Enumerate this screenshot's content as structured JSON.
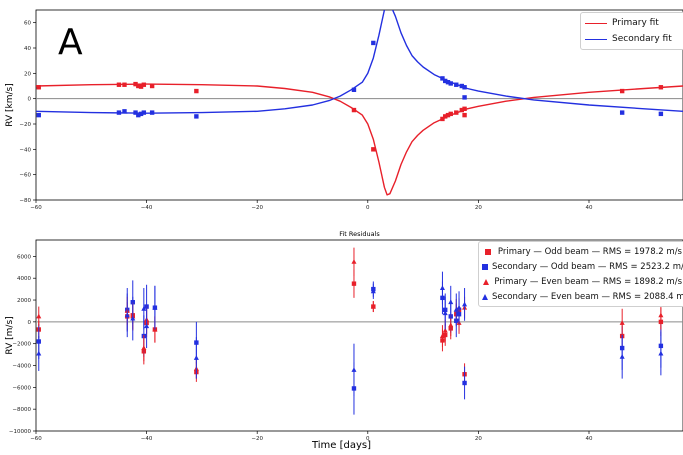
{
  "panel_letter": "A",
  "chart_data": [
    {
      "type": "line",
      "ylabel": "RV [km/s]",
      "xlim": [
        -60,
        57
      ],
      "ylim": [
        -80,
        70
      ],
      "xticks": [
        -60,
        -40,
        -20,
        0,
        20,
        40
      ],
      "yticks": [
        -80,
        -60,
        -40,
        -20,
        0,
        20,
        40,
        60
      ],
      "zero_line": 0,
      "legend": {
        "location": "top-right",
        "entries": [
          "Primary fit",
          "Secondary fit"
        ]
      },
      "colors": {
        "primary": "#e8202a",
        "secondary": "#2330e0",
        "zero": "#888888"
      },
      "fit_curves": [
        {
          "name": "Primary fit",
          "color": "#e8202a",
          "x": [
            -60,
            -50,
            -40,
            -30,
            -20,
            -15,
            -10,
            -7,
            -5,
            -3,
            -1,
            0,
            1,
            2,
            3,
            3.5,
            4,
            5,
            6,
            7,
            8,
            9,
            10,
            12,
            15,
            18,
            20,
            25,
            30,
            40,
            50,
            57
          ],
          "y": [
            10,
            11,
            11.5,
            11,
            10,
            8,
            5,
            1.5,
            -2,
            -7,
            -13,
            -20,
            -32,
            -50,
            -70,
            -76,
            -75,
            -65,
            -52,
            -42,
            -34,
            -29,
            -25,
            -19,
            -13,
            -8,
            -6,
            -2,
            1,
            5,
            8,
            10
          ]
        },
        {
          "name": "Secondary fit",
          "color": "#2330e0",
          "x": [
            -60,
            -50,
            -40,
            -30,
            -20,
            -15,
            -10,
            -7,
            -5,
            -3,
            -1,
            0,
            1,
            2,
            3,
            3.5,
            4,
            5,
            6,
            7,
            8,
            9,
            10,
            12,
            15,
            18,
            20,
            25,
            30,
            40,
            50,
            57
          ],
          "y": [
            -10,
            -11,
            -11.5,
            -11,
            -10,
            -8,
            -5,
            -1.5,
            2,
            7,
            13,
            20,
            32,
            50,
            70,
            76,
            75,
            65,
            52,
            42,
            34,
            29,
            25,
            19,
            13,
            8,
            6,
            2,
            -1,
            -5,
            -8,
            -10
          ]
        }
      ],
      "series": [
        {
          "name": "Primary data",
          "color": "#e8202a",
          "marker": "square",
          "points": [
            [
              -59.5,
              9
            ],
            [
              -45,
              11
            ],
            [
              -44,
              11
            ],
            [
              -42,
              11.5
            ],
            [
              -41.5,
              10
            ],
            [
              -41,
              9.5
            ],
            [
              -40.5,
              11
            ],
            [
              -39,
              10
            ],
            [
              -31,
              6
            ],
            [
              -2.5,
              -9
            ],
            [
              1,
              -40
            ],
            [
              13.5,
              -16
            ],
            [
              14,
              -14
            ],
            [
              14.5,
              -13
            ],
            [
              15,
              -12
            ],
            [
              16,
              -11
            ],
            [
              17,
              -9
            ],
            [
              17.5,
              -8
            ],
            [
              17.5,
              -13
            ],
            [
              46,
              6
            ],
            [
              53,
              9
            ]
          ]
        },
        {
          "name": "Secondary data",
          "color": "#2330e0",
          "marker": "square",
          "points": [
            [
              -59.5,
              -13
            ],
            [
              -45,
              -11
            ],
            [
              -44,
              -10
            ],
            [
              -42,
              -11
            ],
            [
              -41.5,
              -13
            ],
            [
              -41,
              -12
            ],
            [
              -40.5,
              -11
            ],
            [
              -39,
              -11
            ],
            [
              -31,
              -14
            ],
            [
              -2.5,
              7
            ],
            [
              1,
              44
            ],
            [
              13.5,
              16
            ],
            [
              14,
              14
            ],
            [
              14.5,
              13
            ],
            [
              15,
              12
            ],
            [
              16,
              11
            ],
            [
              17,
              10
            ],
            [
              17.5,
              9
            ],
            [
              17.5,
              1
            ],
            [
              46,
              -11
            ],
            [
              53,
              -12
            ]
          ]
        }
      ]
    },
    {
      "type": "scatter",
      "title": "Fit Residuals",
      "xlabel": "Time [days]",
      "ylabel": "RV [m/s]",
      "xlim": [
        -60,
        57
      ],
      "ylim": [
        -10000,
        7500
      ],
      "xticks": [
        -60,
        -40,
        -20,
        0,
        20,
        40
      ],
      "yticks": [
        -10000,
        -8000,
        -6000,
        -4000,
        -2000,
        0,
        2000,
        4000,
        6000
      ],
      "zero_line": 0,
      "legend": {
        "location": "top-right"
      },
      "series": [
        {
          "name": "Primary — Odd beam — RMS = 1978.2 m/s",
          "color": "#e8202a",
          "marker": "square",
          "points": [
            [
              -59.5,
              -700,
              800
            ],
            [
              -43.5,
              500,
              1300
            ],
            [
              -42.5,
              600,
              1300
            ],
            [
              -40.5,
              -2700,
              1200
            ],
            [
              -40,
              -100,
              1300
            ],
            [
              -38.5,
              -700,
              1200
            ],
            [
              -31,
              -4600,
              900
            ],
            [
              -2.5,
              3500,
              1300
            ],
            [
              1,
              1400,
              500
            ],
            [
              13.5,
              -1700,
              1000
            ],
            [
              14,
              -1200,
              1000
            ],
            [
              15,
              -600,
              1000
            ],
            [
              16,
              700,
              1000
            ],
            [
              16.5,
              1100,
              1000
            ],
            [
              17.5,
              -4800,
              1000
            ],
            [
              46,
              -1300,
              1300
            ],
            [
              53,
              0,
              1300
            ]
          ]
        },
        {
          "name": "Secondary — Odd beam — RMS = 2523.2 m/s",
          "color": "#2330e0",
          "marker": "square",
          "points": [
            [
              -59.5,
              -1800,
              1600
            ],
            [
              -43.5,
              1100,
              2000
            ],
            [
              -42.5,
              1800,
              2000
            ],
            [
              -40.5,
              -1300,
              1900
            ],
            [
              -40,
              1400,
              2000
            ],
            [
              -38.5,
              1300,
              2000
            ],
            [
              -31,
              -1900,
              1900
            ],
            [
              -2.5,
              -6100,
              2400
            ],
            [
              1,
              3000,
              700
            ],
            [
              13.5,
              2200,
              1500
            ],
            [
              14,
              1100,
              1500
            ],
            [
              15,
              500,
              1500
            ],
            [
              16,
              100,
              1500
            ],
            [
              16.5,
              700,
              1500
            ],
            [
              17.5,
              -5600,
              1500
            ],
            [
              46,
              -2400,
              2000
            ],
            [
              53,
              -2200,
              2000
            ]
          ]
        },
        {
          "name": "Primary — Even beam — RMS = 1898.2 m/s",
          "color": "#e8202a",
          "marker": "triangle",
          "points": [
            [
              -59.5,
              500,
              900
            ],
            [
              -43.5,
              1000,
              1300
            ],
            [
              -42.5,
              500,
              1300
            ],
            [
              -40.5,
              -2400,
              1200
            ],
            [
              -40,
              200,
              1300
            ],
            [
              -38.5,
              -700,
              1200
            ],
            [
              -31,
              -4300,
              900
            ],
            [
              -2.5,
              5500,
              1300
            ],
            [
              1,
              1400,
              500
            ],
            [
              13.5,
              -1300,
              1000
            ],
            [
              14,
              -800,
              1000
            ],
            [
              15,
              -300,
              1000
            ],
            [
              16,
              1100,
              1000
            ],
            [
              16.5,
              -100,
              1000
            ],
            [
              17.5,
              1300,
              1000
            ],
            [
              46,
              -100,
              1300
            ],
            [
              53,
              600,
              1300
            ]
          ]
        },
        {
          "name": "Secondary — Even beam — RMS = 2088.4 m/s",
          "color": "#2330e0",
          "marker": "triangle",
          "points": [
            [
              -59.5,
              -2900,
              1600
            ],
            [
              -43.5,
              600,
              2000
            ],
            [
              -42.5,
              300,
              2000
            ],
            [
              -40.5,
              1200,
              1900
            ],
            [
              -40,
              -400,
              2000
            ],
            [
              -38.5,
              1300,
              2000
            ],
            [
              -31,
              -3300,
              1900
            ],
            [
              -2.5,
              -4400,
              2400
            ],
            [
              1,
              2800,
              700
            ],
            [
              13.5,
              3100,
              1500
            ],
            [
              14,
              800,
              1500
            ],
            [
              15,
              1800,
              1500
            ],
            [
              16,
              1100,
              1500
            ],
            [
              16.5,
              1300,
              1500
            ],
            [
              17.5,
              1600,
              1500
            ],
            [
              46,
              -3200,
              2000
            ],
            [
              53,
              -2900,
              2000
            ]
          ]
        }
      ]
    }
  ]
}
